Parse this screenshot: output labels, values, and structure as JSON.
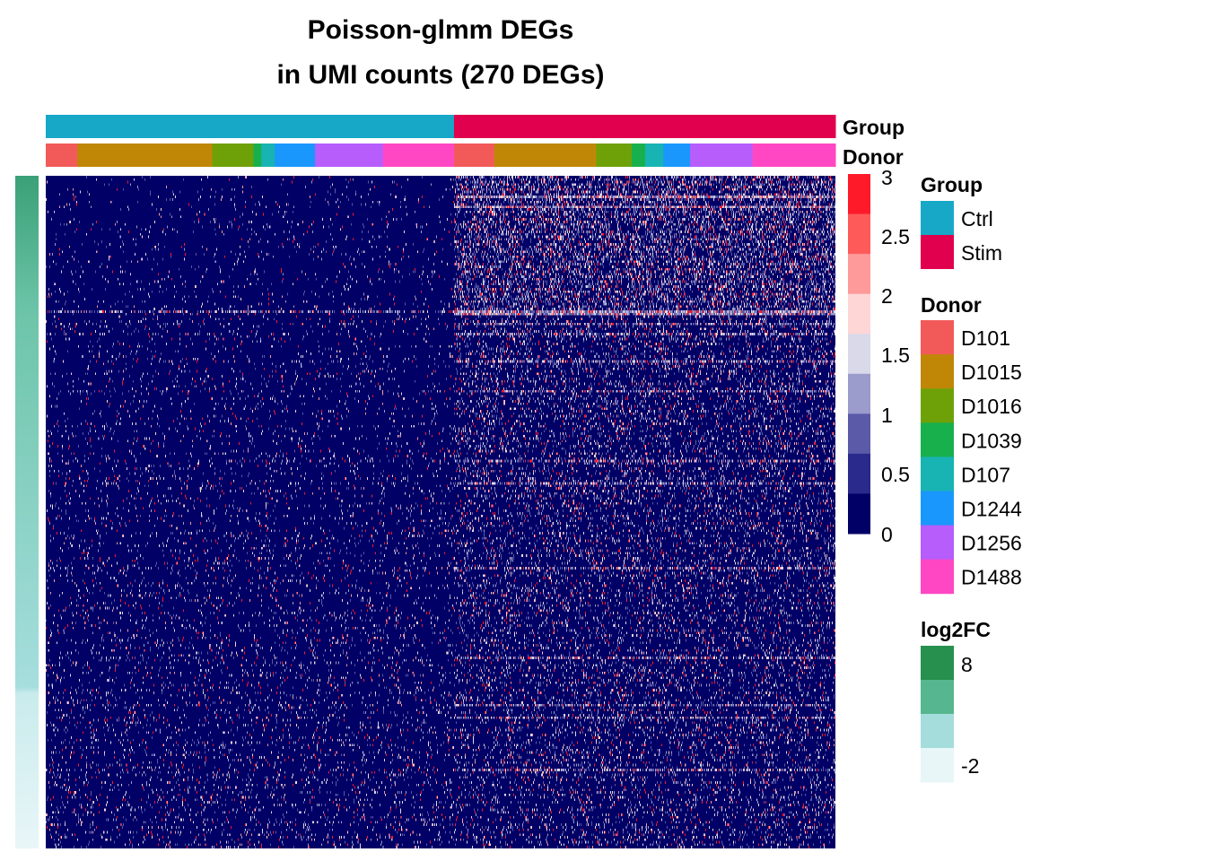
{
  "title": {
    "line1": "Poisson-glmm DEGs",
    "line2": "in UMI counts (270 DEGs)"
  },
  "annotation_labels": {
    "group": "Group",
    "donor": "Donor"
  },
  "chart_data": {
    "type": "heatmap",
    "n_genes": 270,
    "color_scale": {
      "breaks": [
        0,
        0.5,
        1,
        1.5,
        2,
        2.5,
        3
      ],
      "tick_labels": [
        "3",
        "2.5",
        "2",
        "1.5",
        "1",
        "0.5",
        "0"
      ],
      "colors": [
        "#000066",
        "#2a2a8c",
        "#5a5aa8",
        "#9b9bcc",
        "#d9d9ea",
        "#ffd6d6",
        "#ff9a9a",
        "#ff5a5a",
        "#ff1a2a"
      ]
    },
    "column_groups": [
      {
        "name": "Ctrl",
        "color": "#17a8c8",
        "fraction": 0.517
      },
      {
        "name": "Stim",
        "color": "#e0004d",
        "fraction": 0.483
      }
    ],
    "donor_segments": [
      {
        "donor": "D101",
        "fraction": 0.04
      },
      {
        "donor": "D1015",
        "fraction": 0.171
      },
      {
        "donor": "D1016",
        "fraction": 0.052
      },
      {
        "donor": "D1039",
        "fraction": 0.01
      },
      {
        "donor": "D107",
        "fraction": 0.017
      },
      {
        "donor": "D1244",
        "fraction": 0.051
      },
      {
        "donor": "D1256",
        "fraction": 0.086
      },
      {
        "donor": "D1488",
        "fraction": 0.09
      },
      {
        "donor": "D101",
        "fraction": 0.051
      },
      {
        "donor": "D1015",
        "fraction": 0.129
      },
      {
        "donor": "D1016",
        "fraction": 0.045
      },
      {
        "donor": "D1039",
        "fraction": 0.017
      },
      {
        "donor": "D107",
        "fraction": 0.023
      },
      {
        "donor": "D1244",
        "fraction": 0.034
      },
      {
        "donor": "D1256",
        "fraction": 0.079
      },
      {
        "donor": "D1488",
        "fraction": 0.105
      }
    ],
    "row_annotation": {
      "name": "log2FC",
      "range": [
        -2,
        8
      ],
      "gradient_top": "#3aa077",
      "gradient_mid": "#a6dede",
      "gradient_bottom": "#e9f6f8"
    },
    "legends": {
      "group": {
        "title": "Group",
        "items": [
          {
            "label": "Ctrl",
            "color": "#17a8c8"
          },
          {
            "label": "Stim",
            "color": "#e0004d"
          }
        ]
      },
      "donor": {
        "title": "Donor",
        "items": [
          {
            "label": "D101",
            "color": "#f25a5a"
          },
          {
            "label": "D1015",
            "color": "#c08707"
          },
          {
            "label": "D1016",
            "color": "#6ea108"
          },
          {
            "label": "D1039",
            "color": "#18b04c"
          },
          {
            "label": "D107",
            "color": "#18b3b3"
          },
          {
            "label": "D1244",
            "color": "#1a97fc"
          },
          {
            "label": "D1256",
            "color": "#b65dfc"
          },
          {
            "label": "D1488",
            "color": "#ff47c3"
          }
        ]
      },
      "log2fc": {
        "title": "log2FC",
        "labels": [
          "8",
          "-2"
        ],
        "colors": [
          "#27904f",
          "#56b68f",
          "#a5dcdc",
          "#e8f6f8"
        ]
      }
    }
  }
}
